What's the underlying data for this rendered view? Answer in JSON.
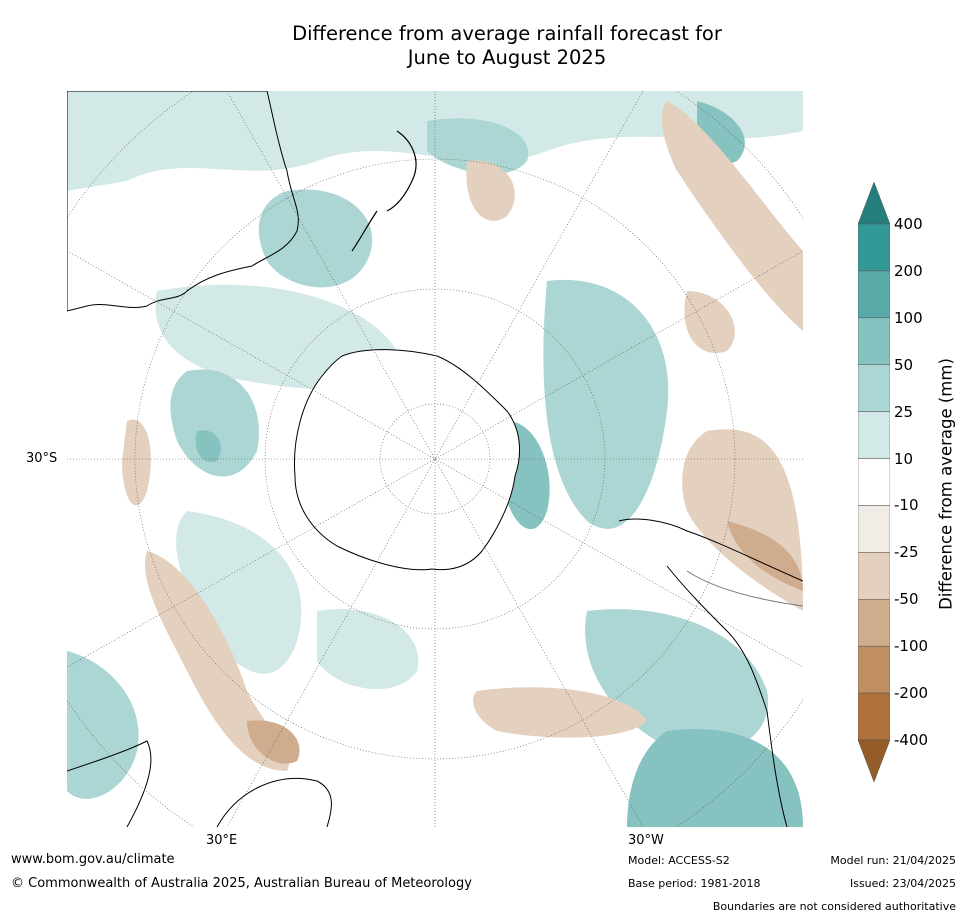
{
  "title_line1": "Difference from average rainfall forecast for",
  "title_line2": "June to August 2025",
  "map": {
    "projection": "south-polar stereographic",
    "lat_label": "30°S",
    "lon_labels": [
      "30°E",
      "30°W"
    ],
    "colors": {
      "wet_400": "#267e7c",
      "wet_200": "#339997",
      "wet_100": "#5aaaaa",
      "wet_50": "#85c2c0",
      "wet_25": "#abd6d4",
      "wet_10": "#d3e9e7",
      "neutral": "#ffffff",
      "dry_10": "#f2ece6",
      "dry_25": "#e4d0bf",
      "dry_50": "#cfac8d",
      "dry_100": "#bf8e63",
      "dry_200": "#ae713c",
      "dry_400": "#935c28",
      "coastline": "#000000",
      "boundary": "#777777",
      "graticule": "#555555"
    }
  },
  "colorbar": {
    "label": "Difference from average (mm)",
    "ticks": [
      "400",
      "200",
      "100",
      "50",
      "25",
      "10",
      "-10",
      "-25",
      "-50",
      "-100",
      "-200",
      "-400"
    ],
    "colors": [
      "#267e7c",
      "#339997",
      "#5aaaaa",
      "#85c2c0",
      "#abd6d4",
      "#d3e9e7",
      "#ffffff",
      "#f2ece6",
      "#e4d0bf",
      "#cfac8d",
      "#bf8e63",
      "#ae713c",
      "#935c28"
    ]
  },
  "footer": {
    "website": "www.bom.gov.au/climate",
    "copyright": "© Commonwealth of Australia 2025, Australian Bureau of Meteorology",
    "model": "Model: ACCESS-S2",
    "base_period": "Base period: 1981-2018",
    "model_run": "Model run: 21/04/2025",
    "issued": "Issued: 23/04/2025",
    "disclaimer": "Boundaries are not considered authoritative"
  }
}
